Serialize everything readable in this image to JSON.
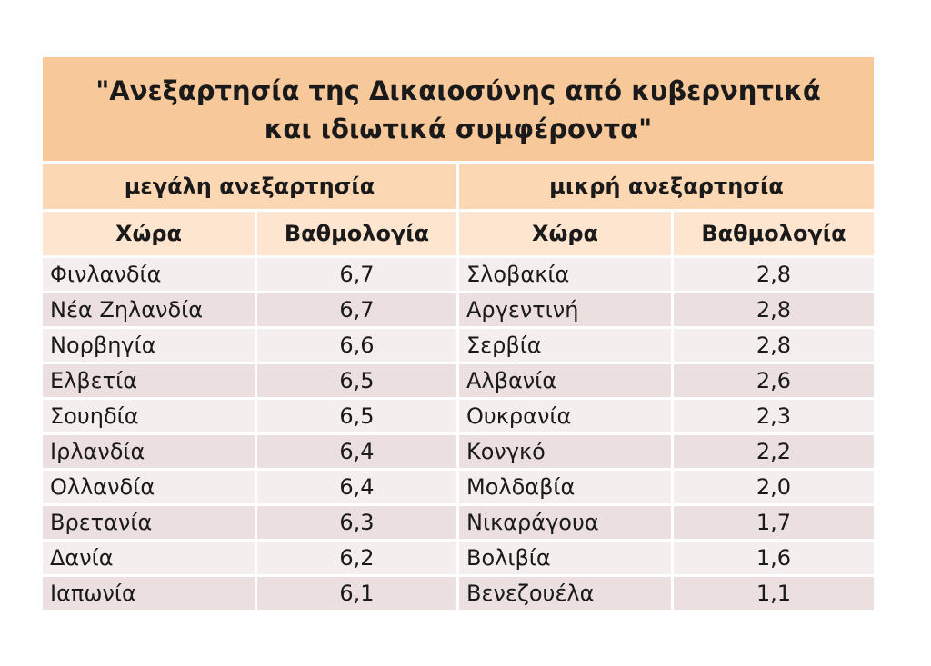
{
  "title": "\"Ανεξαρτησία της Δικαιοσύνης από κυβερνητικά και ιδιωτικά συμφέροντα\"",
  "groups": {
    "high": "μεγάλη ανεξαρτησία",
    "low": "μικρή ανεξαρτησία"
  },
  "columns": {
    "country": "Χώρα",
    "score": "Βαθμολογία"
  },
  "high_independence": [
    {
      "country": "Φινλανδία",
      "score": "6,7"
    },
    {
      "country": "Νέα Ζηλανδία",
      "score": "6,7"
    },
    {
      "country": "Νορβηγία",
      "score": "6,6"
    },
    {
      "country": "Ελβετία",
      "score": "6,5"
    },
    {
      "country": "Σουηδία",
      "score": "6,5"
    },
    {
      "country": "Ιρλανδία",
      "score": "6,4"
    },
    {
      "country": "Ολλανδία",
      "score": "6,4"
    },
    {
      "country": "Βρετανία",
      "score": "6,3"
    },
    {
      "country": "Δανία",
      "score": "6,2"
    },
    {
      "country": "Ιαπωνία",
      "score": "6,1"
    }
  ],
  "low_independence": [
    {
      "country": "Σλοβακία",
      "score": "2,8"
    },
    {
      "country": "Αργεντινή",
      "score": "2,8"
    },
    {
      "country": "Σερβία",
      "score": "2,8"
    },
    {
      "country": "Αλβανία",
      "score": "2,6"
    },
    {
      "country": "Ουκρανία",
      "score": "2,3"
    },
    {
      "country": "Κονγκό",
      "score": "2,2"
    },
    {
      "country": "Μολδαβία",
      "score": "2,0"
    },
    {
      "country": "Νικαράγουα",
      "score": "1,7"
    },
    {
      "country": "Βολιβία",
      "score": "1,6"
    },
    {
      "country": "Βενεζουέλα",
      "score": "1,1"
    }
  ]
}
